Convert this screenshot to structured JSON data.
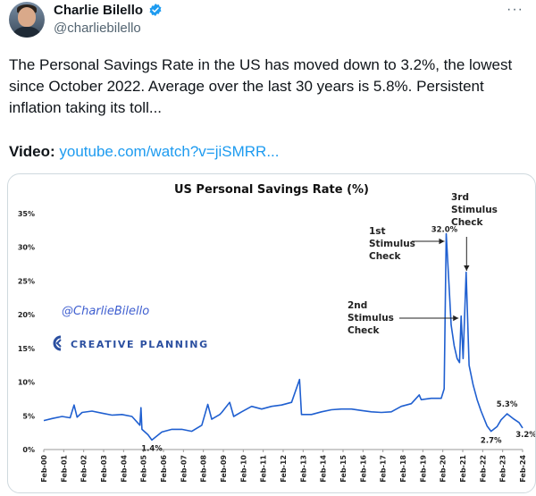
{
  "tweet": {
    "author_name": "Charlie Bilello",
    "handle": "@charliebilello",
    "more_label": "···",
    "text": "The Personal Savings Rate in the US has moved down to 3.2%, the lowest since October 2022. Average over the last 30 years is 5.8%. Persistent inflation taking its toll...",
    "video_label": "Video:",
    "video_link": "youtube.com/watch?v=jiSMRR..."
  },
  "chart_overlay": {
    "watermark": "@CharlieBilello",
    "brand": "CREATIVE PLANNING"
  },
  "chart_data": {
    "type": "line",
    "title": "US Personal Savings Rate (%)",
    "xlabel": "",
    "ylabel": "",
    "ylim": [
      0,
      35
    ],
    "y_ticks": [
      "0%",
      "5%",
      "10%",
      "15%",
      "20%",
      "25%",
      "30%",
      "35%"
    ],
    "x_ticks": [
      "Feb-00",
      "Feb-01",
      "Feb-02",
      "Feb-03",
      "Feb-04",
      "Feb-05",
      "Feb-06",
      "Feb-07",
      "Feb-08",
      "Feb-09",
      "Feb-10",
      "Feb-11",
      "Feb-12",
      "Feb-13",
      "Feb-14",
      "Feb-15",
      "Feb-16",
      "Feb-17",
      "Feb-18",
      "Feb-19",
      "Feb-20",
      "Feb-21",
      "Feb-22",
      "Feb-23",
      "Feb-24"
    ],
    "grid": false,
    "series": [
      {
        "color": "#1f5fd0",
        "points": [
          [
            2000.08,
            4.3
          ],
          [
            2000.5,
            4.6
          ],
          [
            2001.0,
            4.9
          ],
          [
            2001.4,
            4.7
          ],
          [
            2001.6,
            6.6
          ],
          [
            2001.75,
            4.8
          ],
          [
            2002.0,
            5.5
          ],
          [
            2002.5,
            5.7
          ],
          [
            2003.0,
            5.4
          ],
          [
            2003.5,
            5.1
          ],
          [
            2004.0,
            5.2
          ],
          [
            2004.5,
            4.9
          ],
          [
            2004.9,
            3.6
          ],
          [
            2004.95,
            6.2
          ],
          [
            2005.0,
            3.0
          ],
          [
            2005.3,
            2.2
          ],
          [
            2005.5,
            1.4
          ],
          [
            2006.0,
            2.6
          ],
          [
            2006.5,
            3.0
          ],
          [
            2007.0,
            3.0
          ],
          [
            2007.5,
            2.7
          ],
          [
            2008.0,
            3.6
          ],
          [
            2008.3,
            6.7
          ],
          [
            2008.5,
            4.5
          ],
          [
            2008.9,
            5.2
          ],
          [
            2009.0,
            5.5
          ],
          [
            2009.4,
            7.0
          ],
          [
            2009.6,
            4.9
          ],
          [
            2010.0,
            5.6
          ],
          [
            2010.5,
            6.4
          ],
          [
            2011.0,
            6.0
          ],
          [
            2011.5,
            6.4
          ],
          [
            2012.0,
            6.6
          ],
          [
            2012.5,
            7.0
          ],
          [
            2012.9,
            10.4
          ],
          [
            2013.0,
            5.2
          ],
          [
            2013.5,
            5.2
          ],
          [
            2014.0,
            5.6
          ],
          [
            2014.5,
            5.9
          ],
          [
            2015.0,
            6.0
          ],
          [
            2015.5,
            6.0
          ],
          [
            2016.0,
            5.8
          ],
          [
            2016.5,
            5.6
          ],
          [
            2017.0,
            5.5
          ],
          [
            2017.5,
            5.6
          ],
          [
            2018.0,
            6.4
          ],
          [
            2018.5,
            6.8
          ],
          [
            2018.9,
            8.1
          ],
          [
            2019.0,
            7.4
          ],
          [
            2019.5,
            7.6
          ],
          [
            2020.0,
            7.6
          ],
          [
            2020.15,
            9.0
          ],
          [
            2020.25,
            32.0
          ],
          [
            2020.4,
            24.0
          ],
          [
            2020.5,
            18.5
          ],
          [
            2020.65,
            15.4
          ],
          [
            2020.8,
            13.5
          ],
          [
            2020.92,
            12.9
          ],
          [
            2021.0,
            19.8
          ],
          [
            2021.1,
            13.5
          ],
          [
            2021.25,
            26.3
          ],
          [
            2021.4,
            12.5
          ],
          [
            2021.6,
            9.6
          ],
          [
            2021.8,
            7.4
          ],
          [
            2022.0,
            5.7
          ],
          [
            2022.3,
            3.5
          ],
          [
            2022.5,
            2.7
          ],
          [
            2022.8,
            3.4
          ],
          [
            2023.0,
            4.4
          ],
          [
            2023.3,
            5.3
          ],
          [
            2023.6,
            4.6
          ],
          [
            2023.9,
            4.0
          ],
          [
            2024.08,
            3.2
          ]
        ]
      }
    ],
    "annotations": [
      {
        "text": "1.4%",
        "x": 2005.5,
        "y": 1.4
      },
      {
        "text": "32.0%",
        "x": 2020.25,
        "y": 32.0
      },
      {
        "text": "2.7%",
        "x": 2022.5,
        "y": 2.7
      },
      {
        "text": "5.3%",
        "x": 2023.3,
        "y": 5.3
      },
      {
        "text": "3.2%",
        "x": 2024.08,
        "y": 3.2
      },
      {
        "text": "1st Stimulus Check",
        "lines": [
          "1st",
          "Stimulus",
          "Check"
        ],
        "x": 2020.25,
        "y": 32.0
      },
      {
        "text": "2nd Stimulus Check",
        "lines": [
          "2nd",
          "Stimulus",
          "Check"
        ],
        "x": 2021.0,
        "y": 19.8
      },
      {
        "text": "3rd Stimulus Check",
        "lines": [
          "3rd",
          "Stimulus",
          "Check"
        ],
        "x": 2021.25,
        "y": 26.3
      }
    ]
  },
  "colors": {
    "line": "#1f5fd0",
    "link": "#1d9bf0",
    "verified": "#1d9bf0",
    "watermark": "#3f5fd0",
    "brand": "#2b4fa0"
  }
}
